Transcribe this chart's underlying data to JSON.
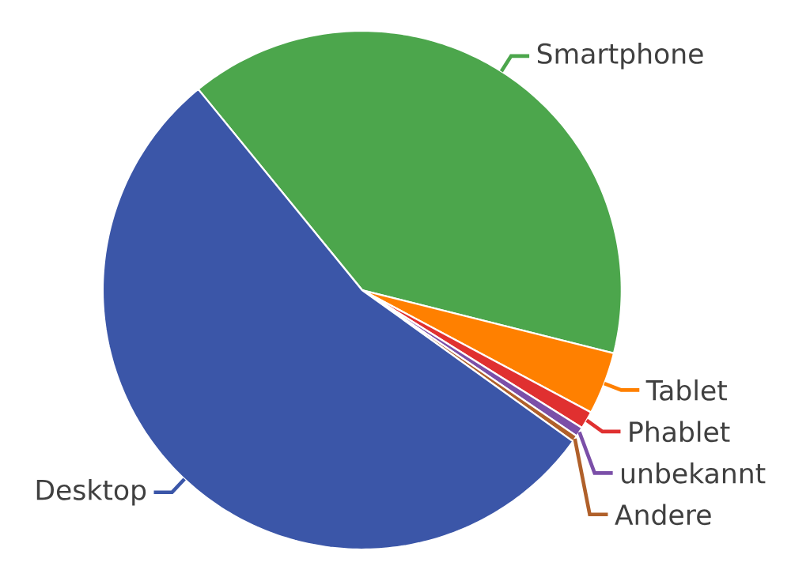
{
  "chart_data": {
    "type": "pie",
    "categories": [
      "Smartphone",
      "Tablet",
      "Phablet",
      "unbekannt",
      "Andere",
      "Desktop"
    ],
    "values": [
      39.8,
      3.9,
      1.1,
      0.6,
      0.4,
      54.2
    ],
    "colors": [
      "#4ca64c",
      "#ff8000",
      "#e03030",
      "#7b4fa8",
      "#b0602a",
      "#3b56a8"
    ]
  }
}
